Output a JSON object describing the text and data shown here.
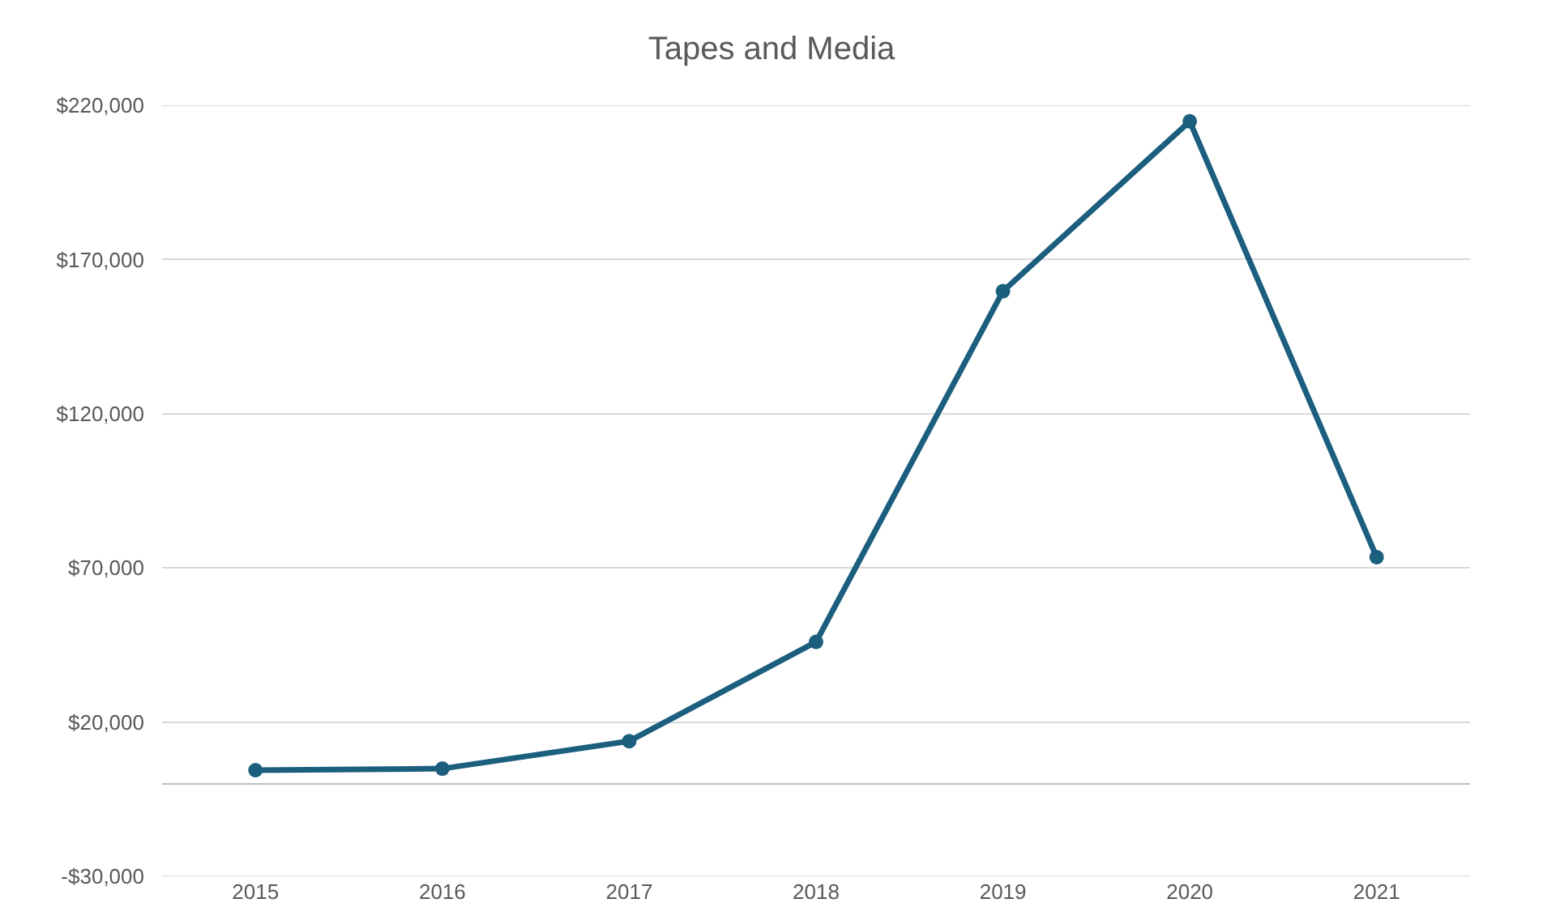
{
  "chart_data": {
    "type": "line",
    "title": "Tapes and Media",
    "categories": [
      "2015",
      "2016",
      "2017",
      "2018",
      "2019",
      "2020",
      "2021"
    ],
    "series": [
      {
        "color": "#1b5e7e",
        "values": [
          4400,
          4900,
          13800,
          46000,
          159700,
          214800,
          73500
        ]
      }
    ],
    "ylim": [
      -30000,
      220000
    ],
    "yticks": [
      {
        "value": -30000,
        "label": "-$30,000"
      },
      {
        "value": 20000,
        "label": "$20,000"
      },
      {
        "value": 70000,
        "label": "$70,000"
      },
      {
        "value": 120000,
        "label": "$120,000"
      },
      {
        "value": 170000,
        "label": "$170,000"
      },
      {
        "value": 220000,
        "label": "$220,000"
      }
    ],
    "grid": "y",
    "marker": "circle",
    "line_style": "solid"
  }
}
